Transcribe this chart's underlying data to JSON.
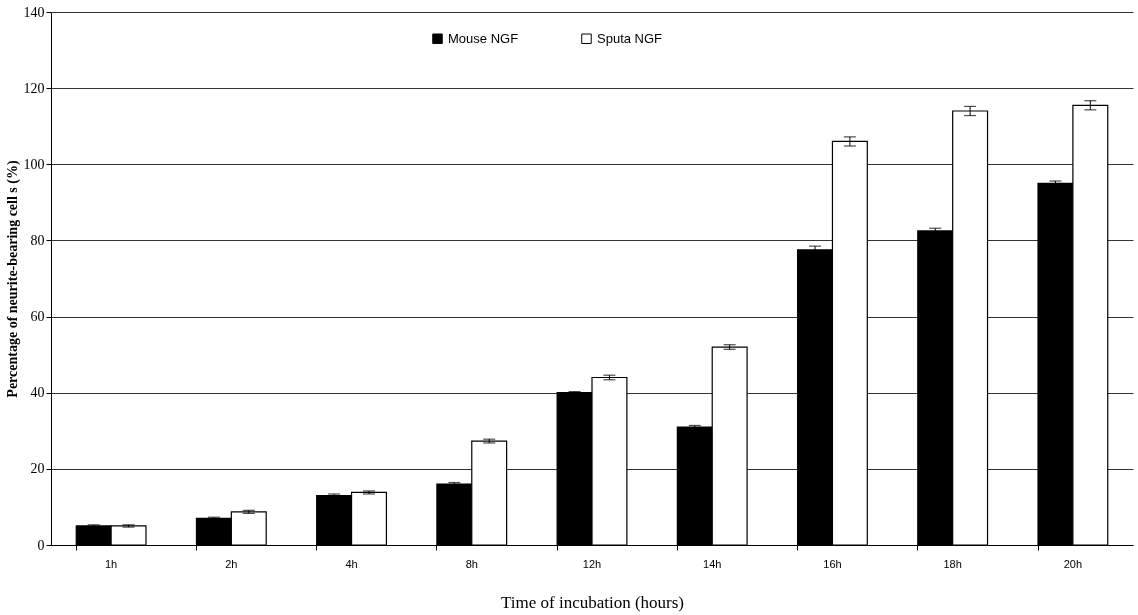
{
  "chart_data": {
    "type": "bar",
    "xlabel": "Time of incubation (hours)",
    "ylabel": "Percentage of neurite-bearing cell s (%)",
    "categories": [
      "1h",
      "2h",
      "4h",
      "8h",
      "12h",
      "14h",
      "16h",
      "18h",
      "20h"
    ],
    "series": [
      {
        "name": "Mouse NGF",
        "color": "#000000",
        "values": [
          5,
          7,
          13,
          16,
          40,
          31,
          77.5,
          82.5,
          95
        ],
        "errors": [
          0.3,
          0.3,
          0.4,
          0.4,
          0.3,
          0.4,
          1,
          0.7,
          0.6
        ]
      },
      {
        "name": "Sputa NGF",
        "color": "#ffffff",
        "values": [
          5,
          8.7,
          13.8,
          27.3,
          44,
          52,
          106,
          114,
          115.5
        ],
        "errors": [
          0.3,
          0.4,
          0.4,
          0.5,
          0.6,
          0.6,
          1.2,
          1.2,
          1.2
        ]
      }
    ],
    "ylim": [
      0,
      140
    ],
    "yticks": [
      0,
      20,
      40,
      60,
      80,
      100,
      120,
      140
    ],
    "grid": "y",
    "legend": "top"
  }
}
